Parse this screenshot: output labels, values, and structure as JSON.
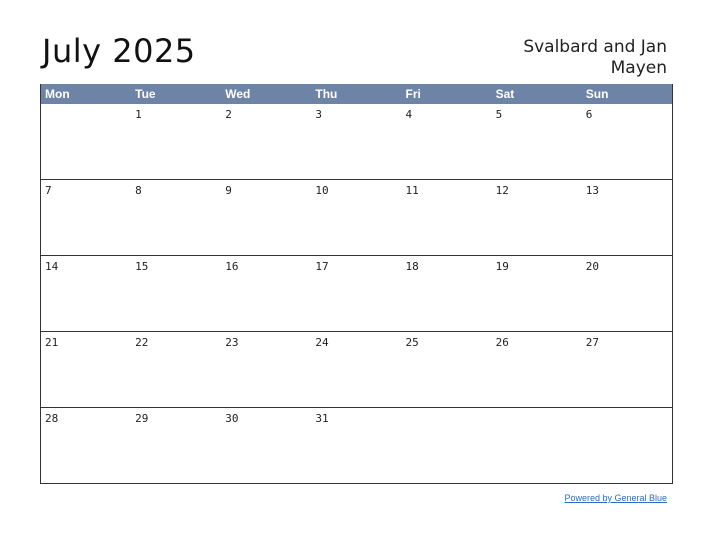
{
  "title": "July 2025",
  "region": "Svalbard and Jan Mayen",
  "weekdays": [
    "Mon",
    "Tue",
    "Wed",
    "Thu",
    "Fri",
    "Sat",
    "Sun"
  ],
  "weeks": [
    [
      "",
      "1",
      "2",
      "3",
      "4",
      "5",
      "6"
    ],
    [
      "7",
      "8",
      "9",
      "10",
      "11",
      "12",
      "13"
    ],
    [
      "14",
      "15",
      "16",
      "17",
      "18",
      "19",
      "20"
    ],
    [
      "21",
      "22",
      "23",
      "24",
      "25",
      "26",
      "27"
    ],
    [
      "28",
      "29",
      "30",
      "31",
      "",
      "",
      ""
    ]
  ],
  "footer": {
    "link_text": "Powered by General Blue"
  },
  "colors": {
    "header_bg": "#6d84a6",
    "link": "#2b6cc4"
  }
}
